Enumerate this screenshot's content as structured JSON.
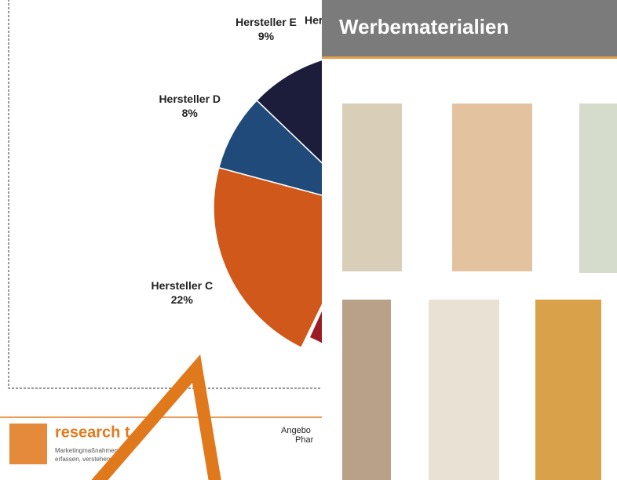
{
  "chart_data": {
    "type": "pie",
    "labels": [
      "Hersteller C",
      "Hersteller D",
      "Hersteller E"
    ],
    "values": [
      22,
      8,
      9
    ],
    "value_labels": [
      "22%",
      "8%",
      "9%"
    ],
    "colors": [
      "#d0581a",
      "#1f4a7a",
      "#1b1d3a"
    ],
    "partial_label": "Hers"
  },
  "panel": {
    "title": "Werbematerialien"
  },
  "footer": {
    "logo": "research t",
    "tagline": [
      "Marketingmaßnahmen",
      "erfassen, verstehen"
    ],
    "note": [
      "Angebo",
      "Phar"
    ]
  }
}
